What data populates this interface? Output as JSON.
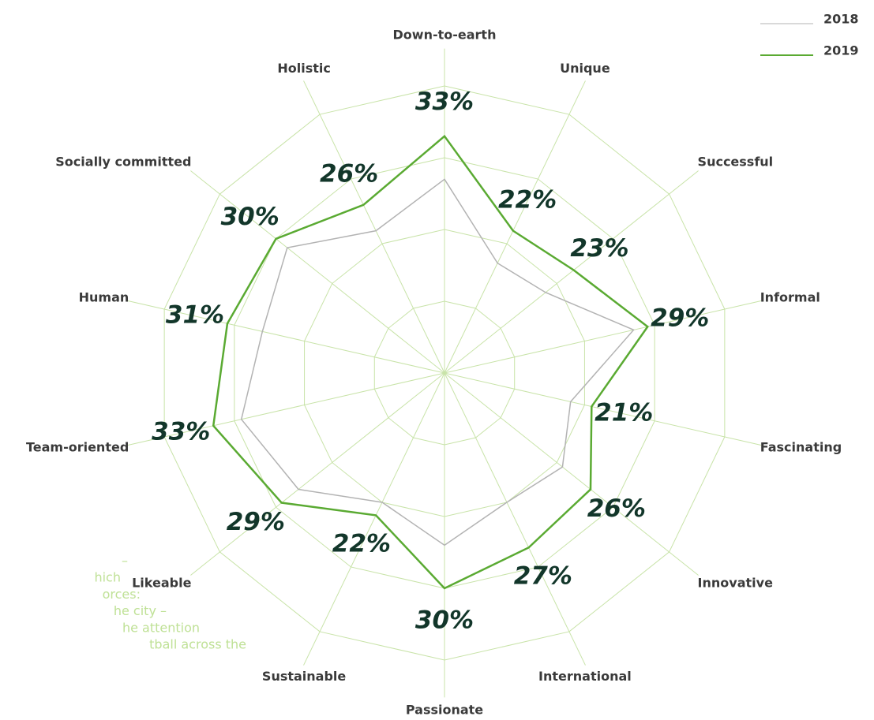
{
  "chart_data": {
    "type": "radar",
    "categories": [
      "Down-to-earth",
      "Unique",
      "Successful",
      "Informal",
      "Fascinating",
      "Innovative",
      "International",
      "Passionate",
      "Sustainable",
      "Likeable",
      "Team-oriented",
      "Human",
      "Socially committed",
      "Holistic"
    ],
    "series": [
      {
        "name": "2018",
        "color": "#b3b3b3",
        "values": [
          27,
          17,
          18,
          27,
          18,
          21,
          20,
          24,
          20,
          26,
          29,
          26,
          28,
          22
        ]
      },
      {
        "name": "2019",
        "color": "#5aaa32",
        "values": [
          33,
          22,
          23,
          29,
          21,
          26,
          27,
          30,
          22,
          29,
          33,
          31,
          30,
          26
        ],
        "value_labels": [
          "33%",
          "22%",
          "23%",
          "29%",
          "21%",
          "26%",
          "27%",
          "30%",
          "22%",
          "29%",
          "33%",
          "31%",
          "30%",
          "26%"
        ]
      }
    ],
    "rlim": [
      0,
      40
    ],
    "rticks": [
      10,
      20,
      30,
      40
    ],
    "grid": true,
    "grid_color": "#c8e3a8",
    "legend": "top-right"
  },
  "side_text": [
    "–",
    "hich",
    "orces:",
    "he city –",
    "he attention",
    "tball across the"
  ]
}
